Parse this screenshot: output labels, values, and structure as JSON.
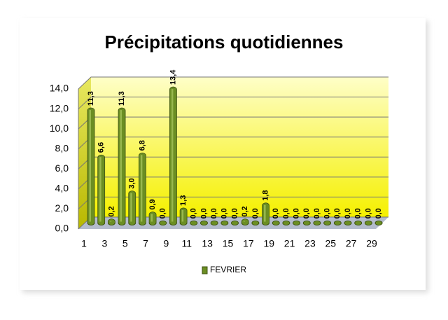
{
  "chart_data": {
    "type": "bar",
    "title": "Précipitations quotidiennes",
    "categories": [
      "1",
      null,
      "3",
      null,
      "5",
      null,
      "7",
      null,
      "9",
      null,
      "11",
      null,
      "13",
      null,
      "15",
      null,
      "17",
      null,
      "19",
      null,
      "21",
      null,
      "23",
      null,
      "25",
      null,
      "27",
      null,
      "29"
    ],
    "series": [
      {
        "name": "FEVRIER",
        "color": "#6b8e23",
        "values": [
          11.3,
          6.6,
          0.2,
          11.3,
          3.0,
          6.8,
          0.9,
          0.0,
          13.4,
          1.3,
          0.0,
          0.0,
          0.0,
          0.0,
          0.0,
          0.2,
          0.0,
          1.8,
          0.0,
          0.0,
          0.0,
          0.0,
          0.0,
          0.0,
          0.0,
          0.0,
          0.0,
          0.0,
          0.0
        ],
        "value_labels": [
          "11,3",
          "6,6",
          "0,2",
          "11,3",
          "3,0",
          "6,8",
          "0,9",
          "0,0",
          "13,4",
          "1,3",
          "0,0",
          "0,0",
          "0,0",
          "0,0",
          "0,0",
          "0,2",
          "0,0",
          "1,8",
          "0,0",
          "0,0",
          "0,0",
          "0,0",
          "0,0",
          "0,0",
          "0,0",
          "0,0",
          "0,0",
          "0,0",
          "0,0"
        ]
      }
    ],
    "ylim": [
      0,
      14
    ],
    "yticks": [
      {
        "value": 0,
        "label": "0,0"
      },
      {
        "value": 2,
        "label": "2,0"
      },
      {
        "value": 4,
        "label": "4,0"
      },
      {
        "value": 6,
        "label": "6,0"
      },
      {
        "value": 8,
        "label": "8,0"
      },
      {
        "value": 10,
        "label": "10,0"
      },
      {
        "value": 12,
        "label": "12,0"
      },
      {
        "value": 14,
        "label": "14,0"
      }
    ],
    "grid": true,
    "legend": "bottom"
  }
}
